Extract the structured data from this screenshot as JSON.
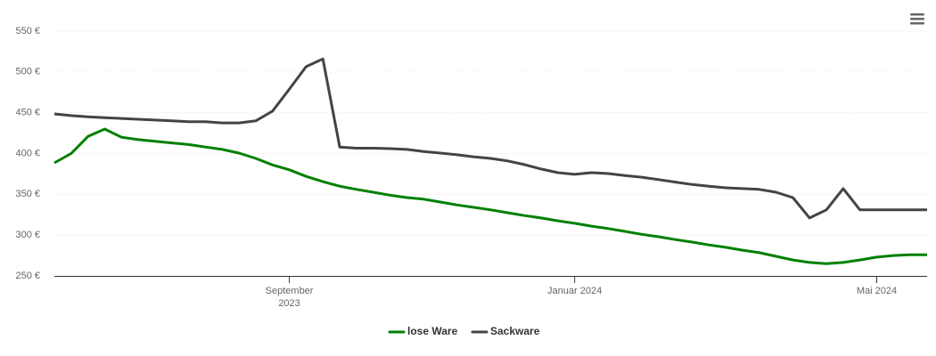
{
  "chart_data": {
    "type": "line",
    "categories": [
      null,
      null,
      null,
      null,
      null,
      null,
      null,
      null,
      null,
      null,
      null,
      null,
      null,
      null,
      "September 2023",
      null,
      null,
      null,
      null,
      null,
      null,
      null,
      null,
      null,
      null,
      null,
      null,
      null,
      null,
      null,
      null,
      "Januar 2024",
      null,
      null,
      null,
      null,
      null,
      null,
      null,
      null,
      null,
      null,
      null,
      null,
      null,
      null,
      null,
      null,
      null,
      "Mai 2024",
      null,
      null,
      null
    ],
    "series": [
      {
        "name": "lose Ware",
        "color": "#008000",
        "values": [
          388.5,
          400,
          421,
          430,
          420,
          417,
          415,
          413,
          411,
          408,
          405,
          400.5,
          394,
          386,
          380,
          372,
          365.5,
          360,
          356,
          352.5,
          349,
          346,
          344,
          340.5,
          337,
          334,
          331,
          327.5,
          324,
          321,
          317.5,
          314.5,
          311,
          308,
          304.5,
          301,
          298,
          294.5,
          291.5,
          288,
          285,
          281.5,
          278.5,
          274,
          269.5,
          266.5,
          265,
          266.5,
          269.5,
          273,
          275,
          276,
          276
        ]
      },
      {
        "name": "Sackware",
        "color": "#434348",
        "values": [
          448.5,
          446.5,
          445,
          444,
          443,
          442,
          441,
          440,
          439,
          439,
          437.5,
          437.5,
          440,
          452,
          479,
          506.5,
          516,
          408,
          406.5,
          406.5,
          406,
          405,
          402.5,
          400.5,
          398.5,
          396,
          394,
          391,
          386.5,
          381,
          376.5,
          374.5,
          376.5,
          375.5,
          373,
          371,
          368,
          365,
          362,
          360,
          358,
          357,
          356,
          352.5,
          346,
          321,
          331,
          357,
          331,
          331,
          331,
          331,
          331
        ]
      }
    ],
    "ylim": [
      250,
      550
    ],
    "yticks": [
      {
        "value": 250,
        "label": "250 €"
      },
      {
        "value": 300,
        "label": "300 €"
      },
      {
        "value": 350,
        "label": "350 €"
      },
      {
        "value": 400,
        "label": "400 €"
      },
      {
        "value": 450,
        "label": "450 €"
      },
      {
        "value": 500,
        "label": "500 €"
      },
      {
        "value": 550,
        "label": "550 €"
      }
    ],
    "grid": true
  }
}
